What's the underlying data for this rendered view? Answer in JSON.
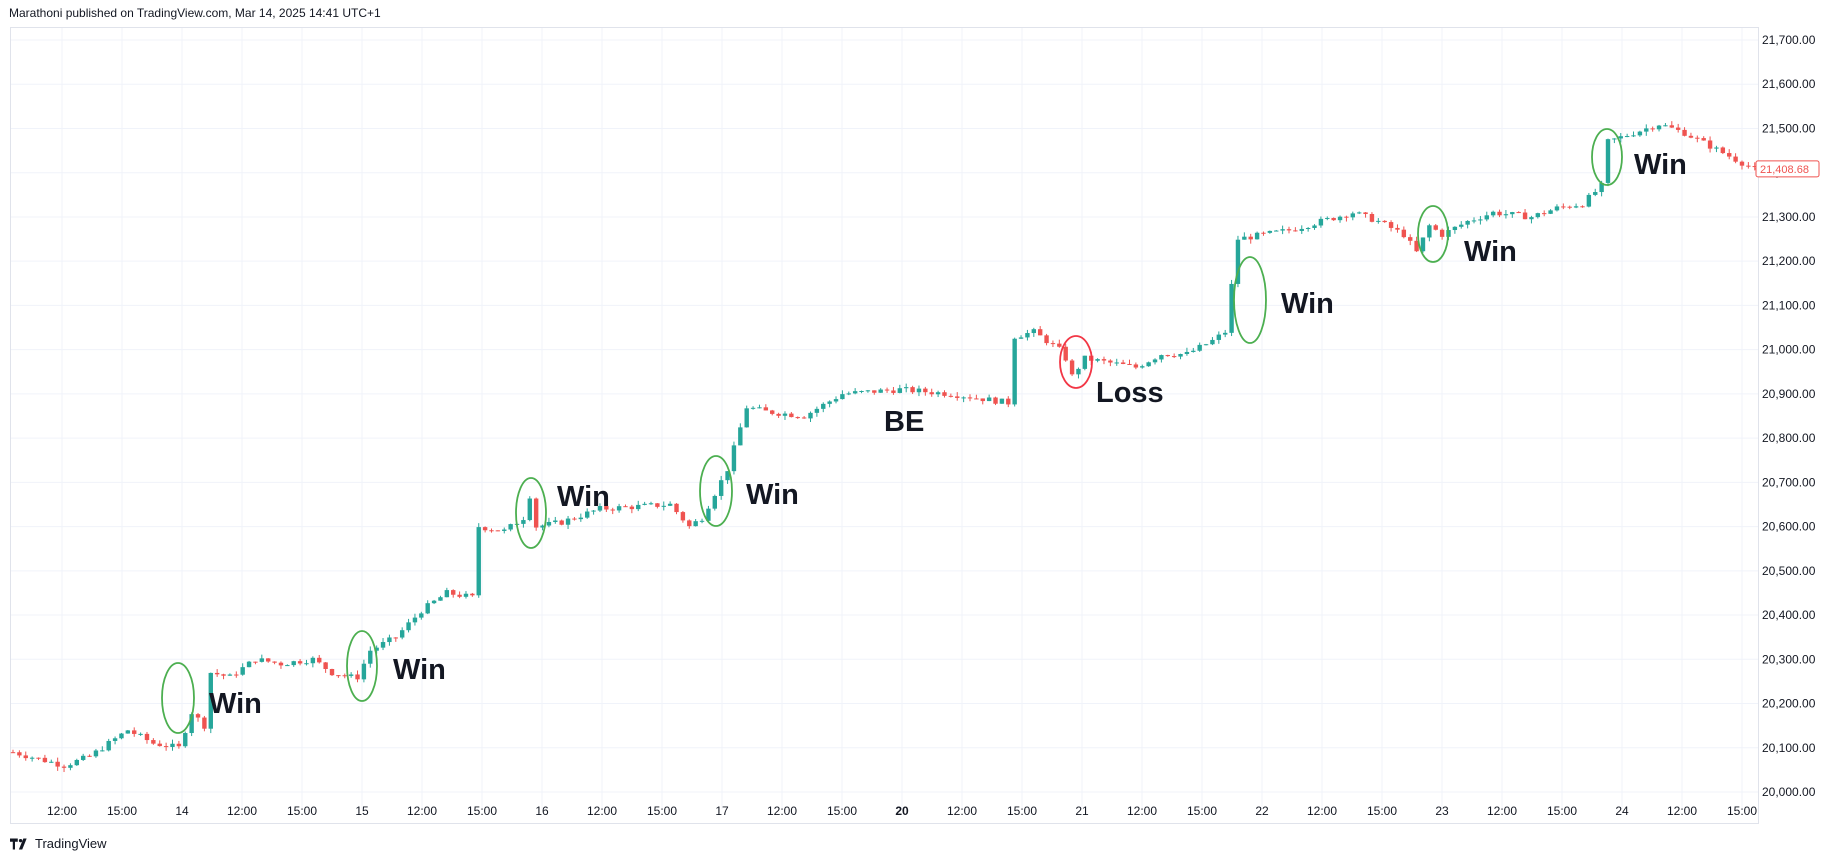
{
  "header": {
    "text": "Marathoni published on TradingView.com, Mar 14, 2025 14:41 UTC+1"
  },
  "footer": {
    "brand": "TradingView",
    "logo_icon": "tradingview-logo-icon"
  },
  "colors": {
    "up": "#26a69a",
    "down": "#ef5350",
    "win_circle": "#4caf50",
    "loss_circle": "#f23645",
    "grid": "#f0f3fa"
  },
  "chart_data": {
    "type": "candlestick",
    "ylim": [
      19960,
      21740
    ],
    "y_ticks": [
      "20,000.00",
      "20,100.00",
      "20,200.00",
      "20,300.00",
      "20,400.00",
      "20,500.00",
      "20,600.00",
      "20,700.00",
      "20,800.00",
      "20,900.00",
      "21,000.00",
      "21,100.00",
      "21,200.00",
      "21,300.00",
      "21,400.00",
      "21,500.00",
      "21,600.00",
      "21,700.00"
    ],
    "x_ticks": [
      {
        "label": "12:00",
        "bold": false
      },
      {
        "label": "15:00",
        "bold": false
      },
      {
        "label": "14",
        "bold": false
      },
      {
        "label": "12:00",
        "bold": false
      },
      {
        "label": "15:00",
        "bold": false
      },
      {
        "label": "15",
        "bold": false
      },
      {
        "label": "12:00",
        "bold": false
      },
      {
        "label": "15:00",
        "bold": false
      },
      {
        "label": "16",
        "bold": false
      },
      {
        "label": "12:00",
        "bold": false
      },
      {
        "label": "15:00",
        "bold": false
      },
      {
        "label": "17",
        "bold": false
      },
      {
        "label": "12:00",
        "bold": false
      },
      {
        "label": "15:00",
        "bold": false
      },
      {
        "label": "20",
        "bold": true
      },
      {
        "label": "12:00",
        "bold": false
      },
      {
        "label": "15:00",
        "bold": false
      },
      {
        "label": "21",
        "bold": false
      },
      {
        "label": "12:00",
        "bold": false
      },
      {
        "label": "15:00",
        "bold": false
      },
      {
        "label": "22",
        "bold": false
      },
      {
        "label": "12:00",
        "bold": false
      },
      {
        "label": "15:00",
        "bold": false
      },
      {
        "label": "23",
        "bold": false
      },
      {
        "label": "12:00",
        "bold": false
      },
      {
        "label": "15:00",
        "bold": false
      },
      {
        "label": "24",
        "bold": false
      },
      {
        "label": "12:00",
        "bold": false
      },
      {
        "label": "15:00",
        "bold": false
      }
    ],
    "last_price": {
      "label": "21,408.68",
      "value": 21408.68
    },
    "path": [
      [
        0,
        20090
      ],
      [
        8,
        20060
      ],
      [
        12,
        20080
      ],
      [
        18,
        20140
      ],
      [
        22,
        20110
      ],
      [
        26,
        20100
      ],
      [
        28,
        20180
      ],
      [
        30,
        20150
      ],
      [
        31,
        20270
      ],
      [
        34,
        20260
      ],
      [
        38,
        20300
      ],
      [
        42,
        20290
      ],
      [
        47,
        20300
      ],
      [
        50,
        20270
      ],
      [
        53,
        20260
      ],
      [
        54,
        20260
      ],
      [
        56,
        20320
      ],
      [
        60,
        20350
      ],
      [
        64,
        20410
      ],
      [
        68,
        20450
      ],
      [
        72,
        20440
      ],
      [
        73,
        20600
      ],
      [
        77,
        20590
      ],
      [
        80,
        20620
      ],
      [
        81,
        20670
      ],
      [
        82,
        20600
      ],
      [
        86,
        20610
      ],
      [
        92,
        20640
      ],
      [
        103,
        20650
      ],
      [
        106,
        20600
      ],
      [
        108,
        20620
      ],
      [
        112,
        20730
      ],
      [
        115,
        20870
      ],
      [
        118,
        20860
      ],
      [
        124,
        20850
      ],
      [
        130,
        20900
      ],
      [
        139,
        20910
      ],
      [
        147,
        20900
      ],
      [
        156,
        20880
      ],
      [
        157,
        21030
      ],
      [
        160,
        21040
      ],
      [
        164,
        21000
      ],
      [
        165,
        20980
      ],
      [
        166,
        20940
      ],
      [
        168,
        20980
      ],
      [
        172,
        20970
      ],
      [
        176,
        20960
      ],
      [
        180,
        20990
      ],
      [
        184,
        20990
      ],
      [
        188,
        21020
      ],
      [
        190,
        21040
      ],
      [
        192,
        21250
      ],
      [
        196,
        21260
      ],
      [
        200,
        21270
      ],
      [
        205,
        21290
      ],
      [
        210,
        21310
      ],
      [
        214,
        21290
      ],
      [
        218,
        21260
      ],
      [
        220,
        21220
      ],
      [
        222,
        21280
      ],
      [
        224,
        21260
      ],
      [
        228,
        21290
      ],
      [
        232,
        21310
      ],
      [
        238,
        21300
      ],
      [
        242,
        21320
      ],
      [
        246,
        21330
      ],
      [
        249,
        21370
      ],
      [
        250,
        21470
      ],
      [
        254,
        21490
      ],
      [
        258,
        21510
      ],
      [
        262,
        21490
      ],
      [
        266,
        21460
      ],
      [
        270,
        21430
      ],
      [
        273,
        21408
      ]
    ]
  },
  "annotations": [
    {
      "label": "Win",
      "kind": "win"
    },
    {
      "label": "Win",
      "kind": "win"
    },
    {
      "label": "Win",
      "kind": "win"
    },
    {
      "label": "Win",
      "kind": "win"
    },
    {
      "label": "BE",
      "kind": "none"
    },
    {
      "label": "Loss",
      "kind": "loss"
    },
    {
      "label": "Win",
      "kind": "win"
    },
    {
      "label": "Win",
      "kind": "win"
    },
    {
      "label": "Win",
      "kind": "win"
    }
  ]
}
